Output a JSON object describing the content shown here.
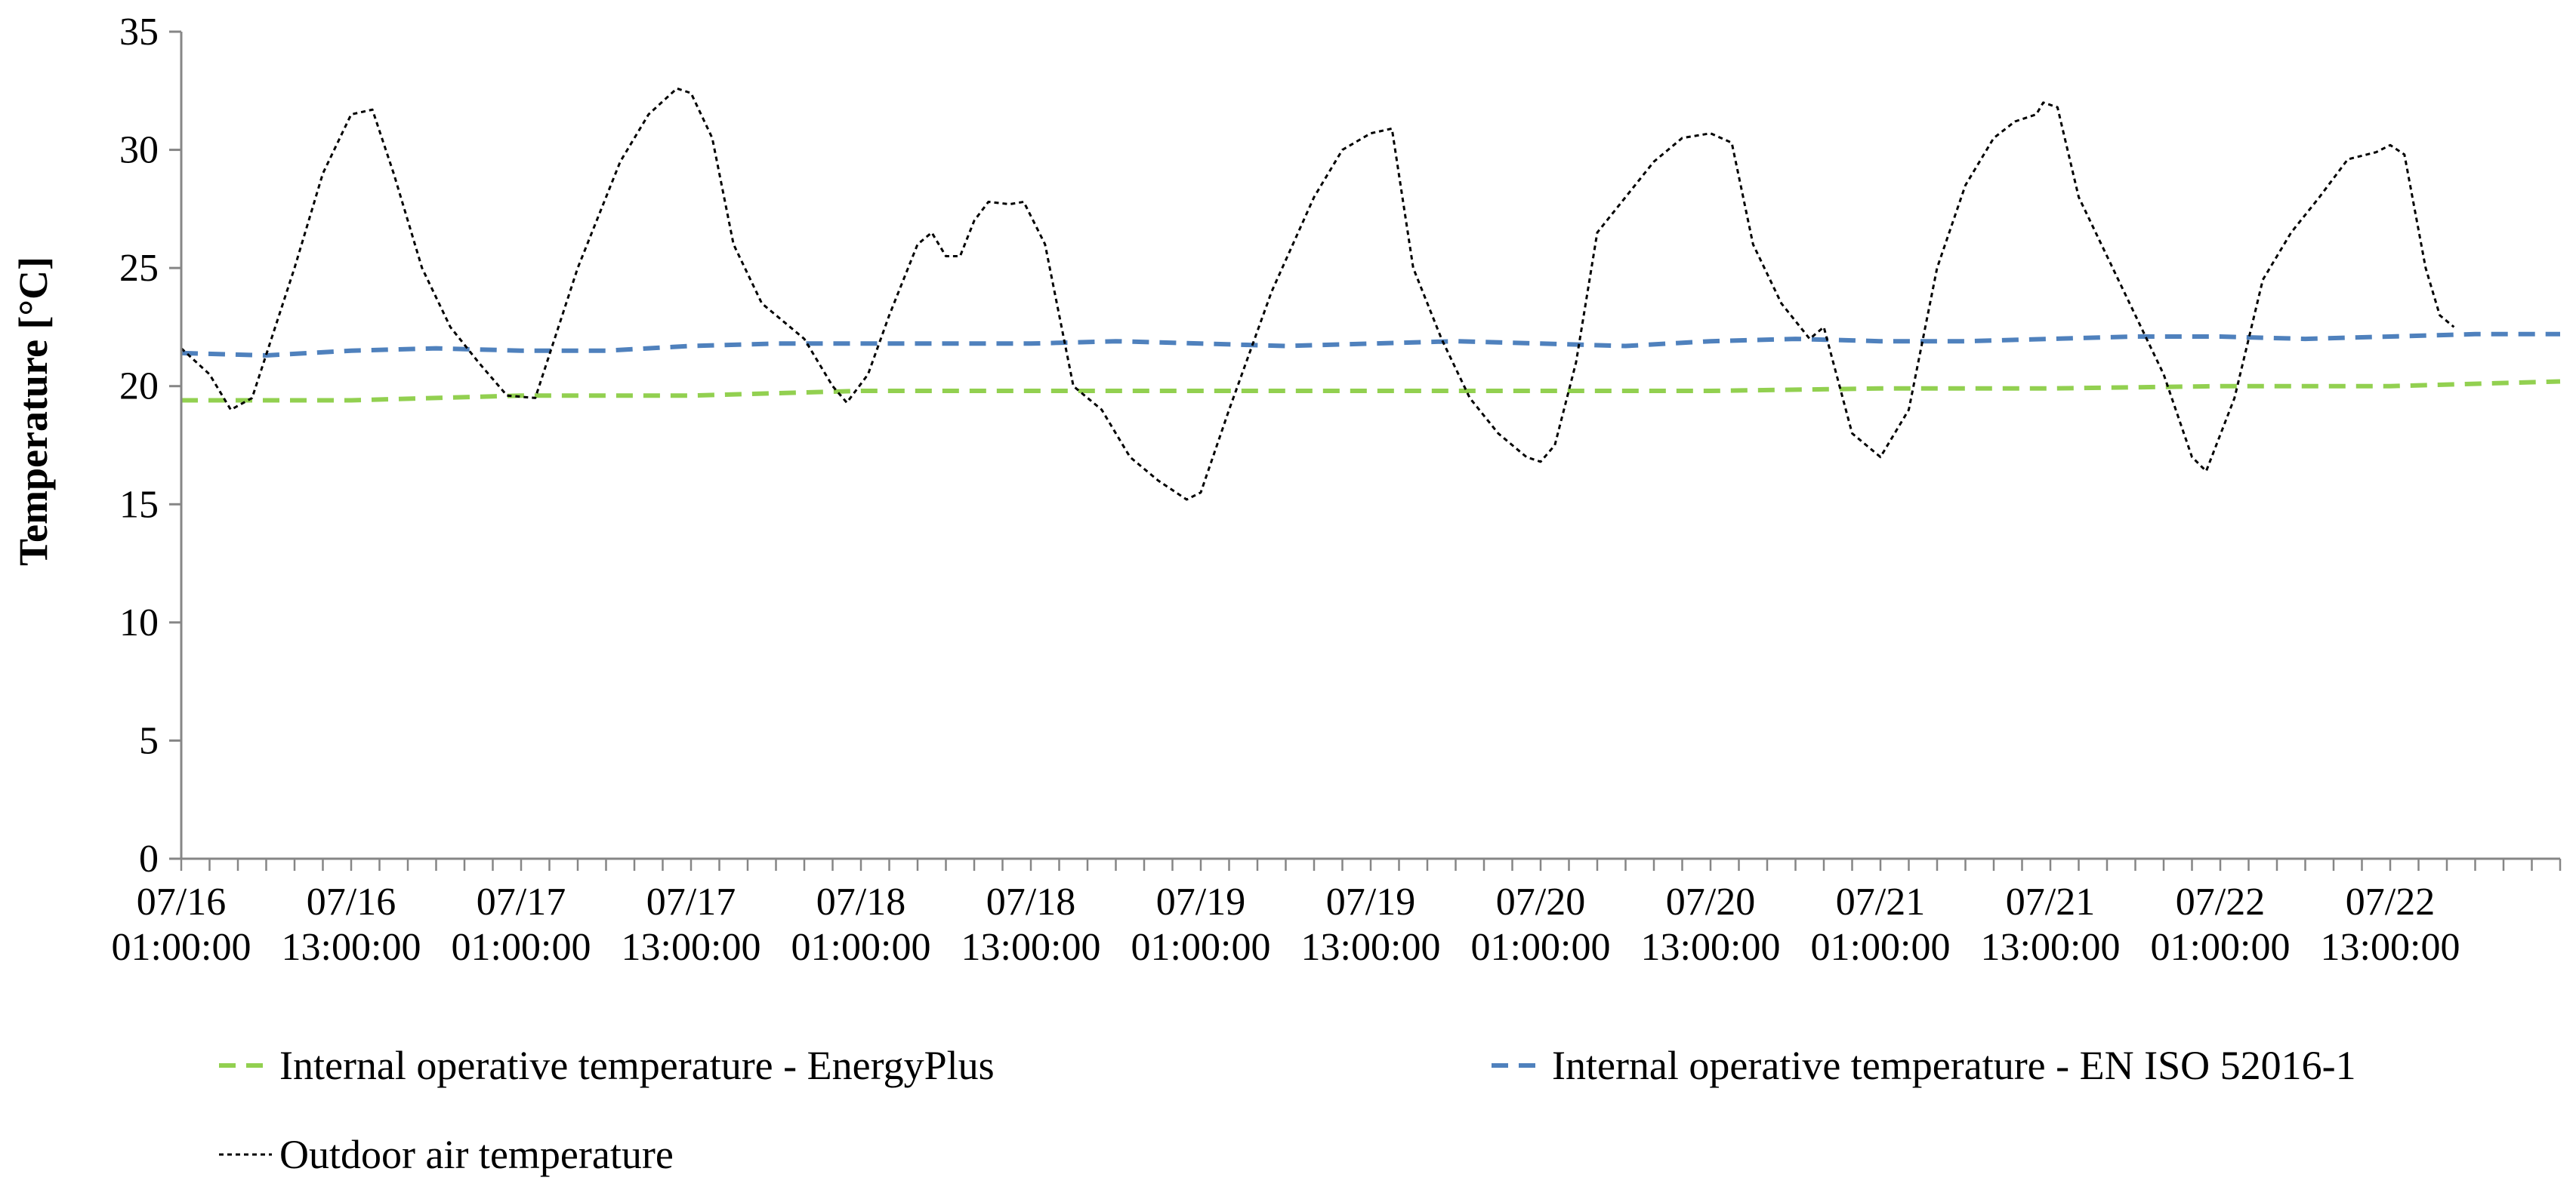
{
  "chart_data": {
    "type": "line",
    "title": "",
    "xlabel": "",
    "ylabel": "Temperature [°C]",
    "ylim": [
      0,
      35
    ],
    "yticks": [
      "0",
      "5",
      "10",
      "15",
      "20",
      "25",
      "30",
      "35"
    ],
    "x_range_hours": [
      0,
      168
    ],
    "xtick_labels": [
      {
        "hour": 0,
        "date": "07/16",
        "time": "01:00:00"
      },
      {
        "hour": 12,
        "date": "07/16",
        "time": "13:00:00"
      },
      {
        "hour": 24,
        "date": "07/17",
        "time": "01:00:00"
      },
      {
        "hour": 36,
        "date": "07/17",
        "time": "13:00:00"
      },
      {
        "hour": 48,
        "date": "07/18",
        "time": "01:00:00"
      },
      {
        "hour": 60,
        "date": "07/18",
        "time": "13:00:00"
      },
      {
        "hour": 72,
        "date": "07/19",
        "time": "01:00:00"
      },
      {
        "hour": 84,
        "date": "07/19",
        "time": "13:00:00"
      },
      {
        "hour": 96,
        "date": "07/20",
        "time": "01:00:00"
      },
      {
        "hour": 108,
        "date": "07/20",
        "time": "13:00:00"
      },
      {
        "hour": 120,
        "date": "07/21",
        "time": "01:00:00"
      },
      {
        "hour": 132,
        "date": "07/21",
        "time": "13:00:00"
      },
      {
        "hour": 144,
        "date": "07/22",
        "time": "01:00:00"
      },
      {
        "hour": 156,
        "date": "07/22",
        "time": "13:00:00"
      }
    ],
    "minor_tick_step_hours": 2,
    "series": [
      {
        "name": "Internal operative temperature - EnergyPlus",
        "color": "#92d050",
        "dash": "dashed",
        "points": [
          [
            0,
            19.4
          ],
          [
            12,
            19.4
          ],
          [
            24,
            19.6
          ],
          [
            36,
            19.6
          ],
          [
            48,
            19.8
          ],
          [
            60,
            19.8
          ],
          [
            72,
            19.8
          ],
          [
            84,
            19.8
          ],
          [
            96,
            19.8
          ],
          [
            108,
            19.8
          ],
          [
            120,
            19.9
          ],
          [
            132,
            19.9
          ],
          [
            144,
            20.0
          ],
          [
            156,
            20.0
          ],
          [
            168,
            20.2
          ]
        ]
      },
      {
        "name": "Internal operative temperature - EN ISO 52016-1",
        "color": "#4f81bd",
        "dash": "dashed",
        "points": [
          [
            0,
            21.4
          ],
          [
            6,
            21.3
          ],
          [
            12,
            21.5
          ],
          [
            18,
            21.6
          ],
          [
            24,
            21.5
          ],
          [
            30,
            21.5
          ],
          [
            36,
            21.7
          ],
          [
            42,
            21.8
          ],
          [
            48,
            21.8
          ],
          [
            54,
            21.8
          ],
          [
            60,
            21.8
          ],
          [
            66,
            21.9
          ],
          [
            72,
            21.8
          ],
          [
            78,
            21.7
          ],
          [
            84,
            21.8
          ],
          [
            90,
            21.9
          ],
          [
            96,
            21.8
          ],
          [
            102,
            21.7
          ],
          [
            108,
            21.9
          ],
          [
            114,
            22.0
          ],
          [
            120,
            21.9
          ],
          [
            126,
            21.9
          ],
          [
            132,
            22.0
          ],
          [
            138,
            22.1
          ],
          [
            144,
            22.1
          ],
          [
            150,
            22.0
          ],
          [
            156,
            22.1
          ],
          [
            162,
            22.2
          ],
          [
            168,
            22.2
          ]
        ]
      },
      {
        "name": "Outdoor air temperature",
        "color": "#000000",
        "dash": "dotted",
        "points": [
          [
            0,
            21.6
          ],
          [
            2,
            20.5
          ],
          [
            3.5,
            19.0
          ],
          [
            5,
            19.5
          ],
          [
            8,
            25
          ],
          [
            10,
            29
          ],
          [
            12,
            31.5
          ],
          [
            13.5,
            31.7
          ],
          [
            15,
            29
          ],
          [
            17,
            25
          ],
          [
            19,
            22.5
          ],
          [
            21,
            21
          ],
          [
            23,
            19.6
          ],
          [
            25,
            19.5
          ],
          [
            28,
            25
          ],
          [
            31,
            29.5
          ],
          [
            33,
            31.5
          ],
          [
            35,
            32.6
          ],
          [
            36,
            32.4
          ],
          [
            37.5,
            30.5
          ],
          [
            39,
            26
          ],
          [
            41,
            23.5
          ],
          [
            44,
            22
          ],
          [
            46,
            20
          ],
          [
            47,
            19.3
          ],
          [
            48.5,
            20.5
          ],
          [
            50,
            23
          ],
          [
            52,
            26
          ],
          [
            53,
            26.5
          ],
          [
            54,
            25.5
          ],
          [
            55,
            25.5
          ],
          [
            56,
            27
          ],
          [
            57,
            27.8
          ],
          [
            58.5,
            27.7
          ],
          [
            59.5,
            27.8
          ],
          [
            61,
            26
          ],
          [
            63,
            20
          ],
          [
            65,
            19
          ],
          [
            67,
            17
          ],
          [
            69,
            16
          ],
          [
            71,
            15.2
          ],
          [
            72,
            15.5
          ],
          [
            74,
            19
          ],
          [
            77,
            24
          ],
          [
            80,
            28
          ],
          [
            82,
            30
          ],
          [
            84,
            30.7
          ],
          [
            85.5,
            30.9
          ],
          [
            87,
            25
          ],
          [
            89,
            22
          ],
          [
            91,
            19.5
          ],
          [
            93,
            18
          ],
          [
            95,
            17
          ],
          [
            96,
            16.8
          ],
          [
            97,
            17.5
          ],
          [
            98.5,
            21
          ],
          [
            100,
            26.5
          ],
          [
            102,
            28
          ],
          [
            104,
            29.5
          ],
          [
            106,
            30.5
          ],
          [
            108,
            30.7
          ],
          [
            109.5,
            30.3
          ],
          [
            111,
            26
          ],
          [
            113,
            23.5
          ],
          [
            115,
            22
          ],
          [
            116,
            22.5
          ],
          [
            118,
            18
          ],
          [
            120,
            17
          ],
          [
            122,
            19
          ],
          [
            124,
            25
          ],
          [
            126,
            28.5
          ],
          [
            128,
            30.5
          ],
          [
            129.5,
            31.2
          ],
          [
            131,
            31.5
          ],
          [
            131.5,
            32.0
          ],
          [
            132.5,
            31.8
          ],
          [
            134,
            28
          ],
          [
            136,
            25.5
          ],
          [
            138,
            23
          ],
          [
            140,
            20.5
          ],
          [
            142,
            17
          ],
          [
            143,
            16.4
          ],
          [
            145,
            19.5
          ],
          [
            147,
            24.5
          ],
          [
            149,
            26.5
          ],
          [
            151,
            28
          ],
          [
            153,
            29.6
          ],
          [
            155,
            29.9
          ],
          [
            156,
            30.2
          ],
          [
            157,
            29.8
          ],
          [
            158.5,
            25
          ],
          [
            159.5,
            23
          ],
          [
            160.5,
            22.5
          ]
        ]
      }
    ],
    "legend": {
      "position": "bottom",
      "entries": [
        "Internal operative temperature - EnergyPlus",
        "Internal operative temperature - EN ISO 52016-1",
        "Outdoor air temperature"
      ]
    }
  }
}
